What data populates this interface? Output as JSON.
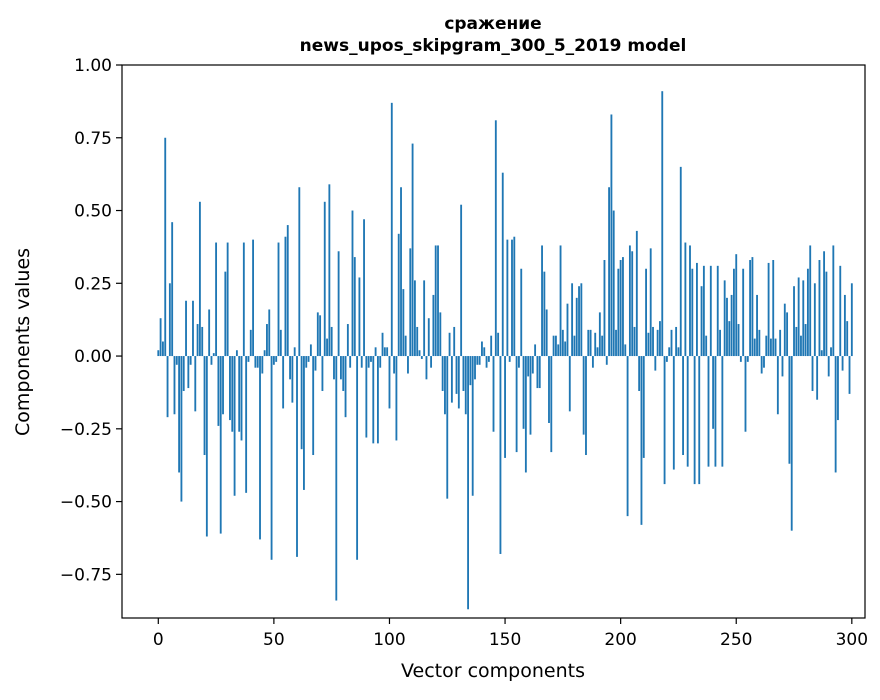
{
  "chart_data": {
    "type": "bar",
    "title": "сражение",
    "subtitle": "news_upos_skipgram_300_5_2019 model",
    "xlabel": "Vector components",
    "ylabel": "Components values",
    "xlim": [
      -15.7,
      305.7
    ],
    "ylim": [
      -0.9,
      1.0
    ],
    "x_ticks": [
      0,
      50,
      100,
      150,
      200,
      250,
      300
    ],
    "y_ticks": [
      -0.75,
      -0.5,
      -0.25,
      0.0,
      0.25,
      0.5,
      0.75,
      1.0
    ],
    "y_tick_labels": [
      "−0.75",
      "−0.50",
      "−0.25",
      "0.00",
      "0.25",
      "0.50",
      "0.75",
      "1.00"
    ],
    "grid": false,
    "legend": "none",
    "bar_color": "#1f77b4",
    "series": [
      {
        "values": [
          0.02,
          0.13,
          0.05,
          0.75,
          -0.21,
          0.25,
          0.46,
          -0.2,
          -0.03,
          -0.4,
          -0.5,
          -0.12,
          0.19,
          -0.11,
          -0.03,
          0.19,
          -0.19,
          0.11,
          0.53,
          0.1,
          -0.34,
          -0.62,
          0.16,
          -0.03,
          0.01,
          0.39,
          -0.24,
          -0.61,
          -0.2,
          0.29,
          0.39,
          -0.22,
          -0.26,
          -0.48,
          0.02,
          -0.26,
          -0.29,
          0.39,
          -0.47,
          -0.02,
          0.09,
          0.4,
          -0.04,
          -0.04,
          -0.63,
          -0.06,
          0.02,
          0.11,
          0.16,
          -0.7,
          -0.03,
          -0.02,
          0.39,
          0.09,
          -0.18,
          0.41,
          0.45,
          -0.08,
          -0.16,
          0.03,
          -0.69,
          0.58,
          -0.32,
          -0.46,
          -0.04,
          -0.02,
          0.04,
          -0.34,
          -0.05,
          0.15,
          0.14,
          -0.12,
          0.53,
          0.06,
          0.59,
          0.1,
          -0.08,
          -0.84,
          0.36,
          -0.08,
          -0.12,
          -0.21,
          0.11,
          -0.04,
          0.5,
          0.34,
          -0.7,
          0.27,
          -0.04,
          0.47,
          -0.28,
          -0.04,
          -0.02,
          -0.3,
          0.03,
          -0.3,
          -0.04,
          0.08,
          0.03,
          0.03,
          -0.18,
          0.87,
          -0.06,
          -0.29,
          0.42,
          0.58,
          0.23,
          0.07,
          -0.06,
          0.37,
          0.73,
          0.26,
          0.1,
          0.02,
          -0.01,
          0.26,
          -0.08,
          0.13,
          -0.04,
          0.21,
          0.38,
          0.38,
          0.15,
          -0.12,
          -0.2,
          -0.49,
          0.08,
          -0.16,
          0.1,
          -0.13,
          -0.18,
          0.52,
          -0.12,
          -0.2,
          -0.87,
          -0.1,
          -0.48,
          -0.08,
          -0.03,
          -0.03,
          0.05,
          0.03,
          -0.04,
          -0.02,
          0.07,
          -0.26,
          0.81,
          0.08,
          -0.68,
          0.63,
          -0.35,
          0.4,
          -0.02,
          0.4,
          0.41,
          -0.33,
          -0.04,
          0.3,
          -0.25,
          -0.4,
          -0.07,
          -0.27,
          -0.06,
          0.04,
          -0.11,
          -0.11,
          0.38,
          0.29,
          0.16,
          -0.23,
          -0.33,
          0.07,
          0.07,
          0.04,
          0.38,
          0.09,
          0.05,
          0.18,
          -0.19,
          0.25,
          0.07,
          0.2,
          0.24,
          0.25,
          -0.27,
          -0.34,
          0.09,
          0.09,
          -0.04,
          0.08,
          0.03,
          0.15,
          0.07,
          0.33,
          -0.03,
          0.58,
          0.83,
          0.5,
          0.09,
          0.3,
          0.33,
          0.34,
          0.04,
          -0.55,
          0.38,
          0.36,
          0.1,
          0.43,
          -0.12,
          -0.58,
          -0.35,
          0.3,
          0.08,
          0.37,
          0.1,
          -0.05,
          0.09,
          0.12,
          0.91,
          -0.44,
          -0.02,
          0.03,
          0.09,
          -0.39,
          0.1,
          0.03,
          0.65,
          -0.34,
          0.39,
          -0.38,
          0.38,
          0.3,
          -0.44,
          0.32,
          -0.44,
          0.24,
          0.31,
          0.07,
          -0.38,
          0.31,
          -0.25,
          -0.38,
          0.31,
          0.09,
          -0.38,
          0.26,
          0.2,
          0.12,
          0.21,
          0.3,
          0.35,
          0.11,
          -0.02,
          0.3,
          -0.26,
          -0.02,
          0.33,
          0.34,
          0.06,
          0.21,
          0.09,
          -0.06,
          -0.04,
          0.07,
          0.32,
          0.06,
          0.33,
          0.06,
          -0.2,
          0.09,
          -0.07,
          0.18,
          0.15,
          -0.37,
          -0.6,
          0.24,
          0.1,
          0.27,
          0.07,
          0.26,
          0.11,
          0.3,
          0.38,
          -0.12,
          0.25,
          -0.15,
          0.33,
          0.02,
          0.36,
          0.29,
          -0.07,
          0.03,
          0.38,
          -0.4,
          -0.22,
          0.31,
          -0.05,
          0.21,
          0.12,
          -0.13,
          0.25
        ]
      }
    ]
  }
}
